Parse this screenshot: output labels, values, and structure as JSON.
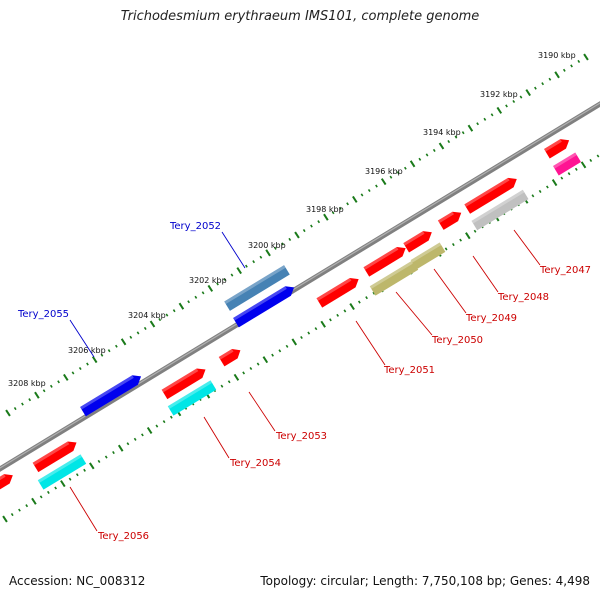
{
  "title": "Trichodesmium erythraeum IMS101, complete genome",
  "footer": {
    "accession": "Accession: NC_008312",
    "summary": "Topology: circular; Length: 7,750,108 bp; Genes: 4,498"
  },
  "colors": {
    "backbone": "#808080",
    "ruler_tick": "#1a7a1a",
    "red_gene": "#ff0000",
    "blue_gene": "#0000ee",
    "cyan_gene": "#00e6e6",
    "steelblue_gene": "#4682b4",
    "olive_gene": "#bdb76b",
    "gray_gene": "#c0c0c0",
    "magenta_gene": "#ff1493",
    "forward_label": "#cc0000",
    "reverse_label": "#0000cc"
  },
  "ruler_labels": [
    "3190 kbp",
    "3192 kbp",
    "3194 kbp",
    "3196 kbp",
    "3198 kbp",
    "3200 kbp",
    "3202 kbp",
    "3204 kbp",
    "3206 kbp",
    "3208 kbp"
  ],
  "gene_labels": [
    {
      "name": "Tery_2047",
      "color": "forward"
    },
    {
      "name": "Tery_2048",
      "color": "forward"
    },
    {
      "name": "Tery_2049",
      "color": "forward"
    },
    {
      "name": "Tery_2050",
      "color": "forward"
    },
    {
      "name": "Tery_2051",
      "color": "forward"
    },
    {
      "name": "Tery_2052",
      "color": "reverse"
    },
    {
      "name": "Tery_2053",
      "color": "forward"
    },
    {
      "name": "Tery_2054",
      "color": "forward"
    },
    {
      "name": "Tery_2055",
      "color": "reverse"
    },
    {
      "name": "Tery_2056",
      "color": "forward"
    }
  ]
}
